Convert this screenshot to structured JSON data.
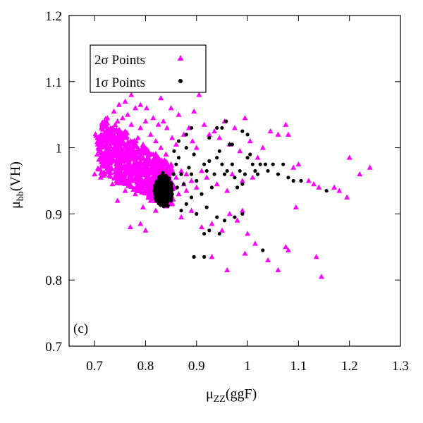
{
  "chart_data": {
    "type": "scatter",
    "title": "",
    "xlabel": {
      "main": "μ",
      "sub": "ZZ",
      "rest": "(ggF)"
    },
    "ylabel": {
      "main": "μ",
      "sub": "bb",
      "rest": "(VH)"
    },
    "xlim": [
      0.65,
      1.3
    ],
    "ylim": [
      0.7,
      1.2
    ],
    "xticks": [
      0.7,
      0.8,
      0.9,
      1.0,
      1.1,
      1.2,
      1.3
    ],
    "yticks": [
      0.7,
      0.8,
      0.9,
      1.0,
      1.1,
      1.2
    ],
    "xtick_labels": [
      "0.7",
      "0.8",
      "0.9",
      "1",
      "1.1",
      "1.2",
      "1.3"
    ],
    "ytick_labels": [
      "0.7",
      "0.8",
      "0.9",
      "1",
      "1.1",
      "1.2"
    ],
    "grid": false,
    "legend_position": "top-left",
    "panel_label": "(c)",
    "series": [
      {
        "name": "2σ Points",
        "marker": "triangle",
        "color": "#ff00ff",
        "points": [
          [
            0.705,
            0.99
          ],
          [
            0.71,
            1.005
          ],
          [
            0.715,
            0.975
          ],
          [
            0.72,
            1.015
          ],
          [
            0.722,
            0.995
          ],
          [
            0.728,
            0.985
          ],
          [
            0.73,
            1.02
          ],
          [
            0.733,
            0.97
          ],
          [
            0.736,
            1.03
          ],
          [
            0.74,
            1.0
          ],
          [
            0.742,
            0.96
          ],
          [
            0.745,
            1.04
          ],
          [
            0.748,
            0.99
          ],
          [
            0.75,
            1.01
          ],
          [
            0.752,
            0.975
          ],
          [
            0.755,
            1.045
          ],
          [
            0.758,
            0.955
          ],
          [
            0.76,
            1.025
          ],
          [
            0.762,
            0.985
          ],
          [
            0.765,
            1.05
          ],
          [
            0.768,
            0.965
          ],
          [
            0.77,
            1.0
          ],
          [
            0.772,
            1.035
          ],
          [
            0.775,
            0.95
          ],
          [
            0.778,
            0.99
          ],
          [
            0.78,
            1.06
          ],
          [
            0.782,
            0.975
          ],
          [
            0.785,
            1.015
          ],
          [
            0.788,
            0.945
          ],
          [
            0.79,
            1.03
          ],
          [
            0.792,
            0.985
          ],
          [
            0.795,
            1.005
          ],
          [
            0.798,
            0.96
          ],
          [
            0.8,
            1.04
          ],
          [
            0.802,
            0.975
          ],
          [
            0.805,
            0.995
          ],
          [
            0.808,
            0.945
          ],
          [
            0.81,
            1.02
          ],
          [
            0.812,
            0.965
          ],
          [
            0.815,
            0.99
          ],
          [
            0.818,
            0.94
          ],
          [
            0.82,
            1.01
          ],
          [
            0.822,
            0.955
          ],
          [
            0.825,
            0.985
          ],
          [
            0.828,
            0.935
          ],
          [
            0.83,
            1.0
          ],
          [
            0.832,
            0.95
          ],
          [
            0.835,
            0.97
          ],
          [
            0.838,
            0.93
          ],
          [
            0.84,
            0.99
          ],
          [
            0.842,
            0.945
          ],
          [
            0.845,
            0.96
          ],
          [
            0.848,
            0.925
          ],
          [
            0.85,
            0.975
          ],
          [
            0.855,
            0.94
          ],
          [
            0.86,
            0.955
          ],
          [
            0.865,
            0.93
          ],
          [
            0.87,
            0.965
          ],
          [
            0.875,
            0.945
          ],
          [
            0.88,
            0.935
          ],
          [
            0.7,
            0.96
          ],
          [
            0.712,
            0.955
          ],
          [
            0.725,
            1.045
          ],
          [
            0.738,
            1.055
          ],
          [
            0.748,
            1.065
          ],
          [
            0.76,
            1.07
          ],
          [
            0.772,
            1.08
          ],
          [
            0.79,
            1.065
          ],
          [
            0.802,
            1.06
          ],
          [
            0.815,
            1.045
          ],
          [
            0.825,
            1.035
          ],
          [
            0.835,
            1.04
          ],
          [
            0.842,
            1.03
          ],
          [
            0.852,
            1.015
          ],
          [
            0.86,
            1.005
          ],
          [
            0.865,
            1.05
          ],
          [
            0.875,
            1.02
          ],
          [
            0.885,
            1.03
          ],
          [
            0.892,
            1.01
          ],
          [
            0.9,
            1.0
          ],
          [
            0.83,
            1.075
          ],
          [
            0.85,
            1.06
          ],
          [
            0.895,
            1.055
          ],
          [
            0.905,
            1.08
          ],
          [
            0.915,
            1.035
          ],
          [
            0.925,
            1.02
          ],
          [
            0.935,
            1.025
          ],
          [
            0.945,
            1.015
          ],
          [
            0.955,
            1.04
          ],
          [
            0.965,
            1.005
          ],
          [
            0.975,
            1.03
          ],
          [
            0.985,
            0.995
          ],
          [
            0.995,
            1.045
          ],
          [
            1.005,
            1.01
          ],
          [
            1.02,
            0.985
          ],
          [
            1.03,
            1.0
          ],
          [
            1.045,
            1.025
          ],
          [
            1.06,
            1.02
          ],
          [
            1.075,
            1.035
          ],
          [
            1.08,
            1.02
          ],
          [
            1.09,
            0.97
          ],
          [
            1.1,
            0.975
          ],
          [
            1.12,
            0.95
          ],
          [
            1.13,
            0.945
          ],
          [
            1.14,
            0.94
          ],
          [
            1.17,
            0.94
          ],
          [
            1.18,
            0.935
          ],
          [
            1.195,
            0.925
          ],
          [
            1.2,
            0.985
          ],
          [
            1.22,
            0.96
          ],
          [
            1.24,
            0.97
          ],
          [
            0.77,
            0.88
          ],
          [
            0.79,
            0.885
          ],
          [
            0.8,
            0.875
          ],
          [
            0.82,
            0.905
          ],
          [
            0.845,
            0.915
          ],
          [
            0.87,
            0.895
          ],
          [
            0.89,
            0.905
          ],
          [
            0.91,
            0.88
          ],
          [
            0.93,
            0.885
          ],
          [
            0.95,
            0.875
          ],
          [
            0.965,
            0.9
          ],
          [
            0.98,
            0.89
          ],
          [
            0.99,
            0.905
          ],
          [
            1.0,
            0.87
          ],
          [
            0.93,
            0.835
          ],
          [
            0.96,
            0.815
          ],
          [
            0.995,
            0.84
          ],
          [
            1.015,
            0.855
          ],
          [
            1.04,
            0.83
          ],
          [
            1.06,
            0.815
          ],
          [
            1.075,
            0.85
          ],
          [
            1.08,
            0.845
          ],
          [
            1.095,
            0.91
          ],
          [
            1.135,
            0.835
          ],
          [
            1.145,
            0.805
          ],
          [
            0.88,
            0.96
          ],
          [
            0.89,
            0.95
          ],
          [
            0.9,
            0.94
          ],
          [
            0.91,
            0.965
          ],
          [
            0.92,
            0.955
          ],
          [
            0.94,
            0.945
          ],
          [
            0.96,
            0.935
          ],
          [
            0.97,
            0.96
          ],
          [
            0.99,
            0.95
          ],
          [
            1.01,
            0.955
          ],
          [
            0.745,
            0.92
          ],
          [
            0.76,
            0.935
          ],
          [
            0.78,
            0.93
          ],
          [
            0.795,
            0.91
          ],
          [
            0.81,
            0.92
          ],
          [
            0.72,
            0.96
          ],
          [
            0.735,
            0.945
          ],
          [
            0.79,
            0.95
          ],
          [
            0.806,
            0.935
          ]
        ]
      },
      {
        "name": "1σ Points",
        "marker": "circle",
        "color": "#000000",
        "points": [
          [
            0.82,
            0.93
          ],
          [
            0.823,
            0.94
          ],
          [
            0.825,
            0.925
          ],
          [
            0.828,
            0.945
          ],
          [
            0.83,
            0.935
          ],
          [
            0.832,
            0.92
          ],
          [
            0.835,
            0.95
          ],
          [
            0.838,
            0.93
          ],
          [
            0.84,
            0.94
          ],
          [
            0.842,
            0.925
          ],
          [
            0.845,
            0.935
          ],
          [
            0.848,
            0.945
          ],
          [
            0.85,
            0.92
          ],
          [
            0.852,
            0.93
          ],
          [
            0.826,
            0.955
          ],
          [
            0.834,
            0.962
          ],
          [
            0.842,
            0.955
          ],
          [
            0.836,
            0.915
          ],
          [
            0.844,
            0.912
          ],
          [
            0.829,
            0.938
          ],
          [
            0.855,
            0.96
          ],
          [
            0.86,
            0.975
          ],
          [
            0.865,
            0.985
          ],
          [
            0.87,
            0.96
          ],
          [
            0.875,
            0.945
          ],
          [
            0.88,
            1.0
          ],
          [
            0.885,
            0.97
          ],
          [
            0.89,
            0.96
          ],
          [
            0.895,
            0.99
          ],
          [
            0.9,
            0.95
          ],
          [
            0.91,
            0.93
          ],
          [
            0.915,
            0.975
          ],
          [
            0.92,
            0.965
          ],
          [
            0.925,
            0.98
          ],
          [
            0.93,
            0.94
          ],
          [
            0.935,
            0.96
          ],
          [
            0.94,
            0.985
          ],
          [
            0.945,
            0.995
          ],
          [
            0.95,
            0.975
          ],
          [
            0.955,
            0.96
          ],
          [
            0.96,
            0.965
          ],
          [
            0.965,
            1.005
          ],
          [
            0.97,
            0.975
          ],
          [
            0.975,
            0.955
          ],
          [
            0.98,
            0.94
          ],
          [
            0.985,
            0.965
          ],
          [
            0.99,
            0.945
          ],
          [
            0.995,
            0.96
          ],
          [
            1.0,
            0.985
          ],
          [
            1.005,
            0.99
          ],
          [
            1.01,
            0.975
          ],
          [
            1.015,
            0.965
          ],
          [
            1.02,
            0.96
          ],
          [
            1.025,
            0.975
          ],
          [
            1.035,
            0.975
          ],
          [
            1.04,
            0.965
          ],
          [
            1.05,
            0.975
          ],
          [
            1.06,
            0.96
          ],
          [
            1.07,
            0.975
          ],
          [
            1.08,
            0.955
          ],
          [
            1.09,
            0.95
          ],
          [
            1.105,
            0.95
          ],
          [
            1.155,
            0.935
          ],
          [
            0.87,
            0.905
          ],
          [
            0.88,
            0.915
          ],
          [
            0.89,
            0.925
          ],
          [
            0.9,
            0.9
          ],
          [
            0.92,
            0.91
          ],
          [
            0.94,
            0.895
          ],
          [
            0.955,
            0.89
          ],
          [
            0.975,
            0.895
          ],
          [
            0.99,
            0.9
          ],
          [
            0.915,
            0.87
          ],
          [
            0.925,
            0.875
          ],
          [
            0.945,
            0.87
          ],
          [
            1.03,
            0.845
          ],
          [
            0.895,
            0.835
          ],
          [
            0.915,
            0.835
          ],
          [
            0.95,
            1.03
          ],
          [
            0.97,
            1.005
          ],
          [
            0.99,
            1.025
          ],
          [
            1.0,
            1.02
          ],
          [
            0.925,
            1.015
          ],
          [
            0.94,
            1.03
          ],
          [
            0.958,
            1.04
          ],
          [
            0.88,
            1.02
          ],
          [
            0.89,
            1.03
          ],
          [
            0.865,
            1.01
          ],
          [
            0.856,
            0.995
          ],
          [
            0.862,
            0.94
          ]
        ]
      }
    ]
  }
}
